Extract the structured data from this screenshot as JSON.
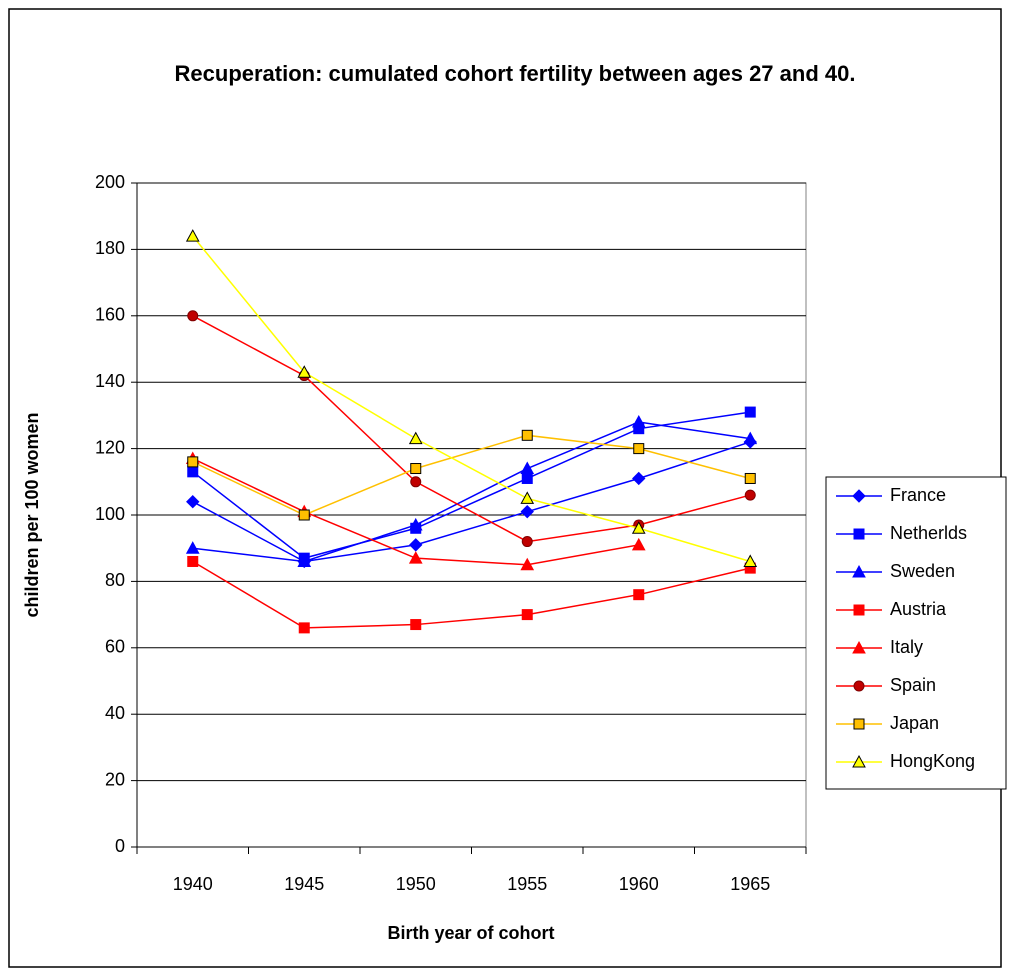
{
  "chart_data": {
    "type": "line",
    "title": "Recuperation: cumulated cohort fertility between ages 27 and 40.",
    "x_label": "Birth year of cohort",
    "y_label": "children per 100 women",
    "categories": [
      "1940",
      "1945",
      "1950",
      "1955",
      "1960",
      "1965"
    ],
    "ylim": [
      0,
      200
    ],
    "yticks": [
      0,
      20,
      40,
      60,
      80,
      100,
      120,
      140,
      160,
      180,
      200
    ],
    "grid": true,
    "legend": "right",
    "series": [
      {
        "name": "France",
        "color": "#0000ff",
        "marker": "diamond",
        "marker_edge": "#0000ff",
        "values": [
          104,
          86,
          91,
          101,
          111,
          122
        ]
      },
      {
        "name": "Netherlds",
        "color": "#0000ff",
        "marker": "square",
        "marker_edge": "#0000ff",
        "values": [
          113,
          87,
          96,
          111,
          126,
          131
        ]
      },
      {
        "name": "Sweden",
        "color": "#0000ff",
        "marker": "triangle",
        "marker_edge": "#0000ff",
        "values": [
          90,
          86,
          97,
          114,
          128,
          123
        ]
      },
      {
        "name": "Austria",
        "color": "#ff0000",
        "marker": "square",
        "marker_edge": "#ff0000",
        "values": [
          86,
          66,
          67,
          70,
          76,
          84
        ]
      },
      {
        "name": "Italy",
        "color": "#ff0000",
        "marker": "triangle",
        "marker_edge": "#ff0000",
        "values": [
          117,
          101,
          87,
          85,
          91,
          null
        ]
      },
      {
        "name": "Spain",
        "color": "#ff0000",
        "marker": "circle",
        "marker_fill": "#c00000",
        "marker_edge": "#800000",
        "values": [
          160,
          142,
          110,
          92,
          97,
          106
        ]
      },
      {
        "name": "Japan",
        "color": "#ffc000",
        "marker": "square",
        "marker_fill": "#ffc000",
        "marker_edge": "#000000",
        "values": [
          116,
          100,
          114,
          124,
          120,
          111
        ]
      },
      {
        "name": "HongKong",
        "color": "#ffff00",
        "marker": "triangle",
        "marker_fill": "#ffff00",
        "marker_edge": "#000000",
        "values": [
          184,
          143,
          123,
          105,
          96,
          86
        ]
      }
    ]
  }
}
